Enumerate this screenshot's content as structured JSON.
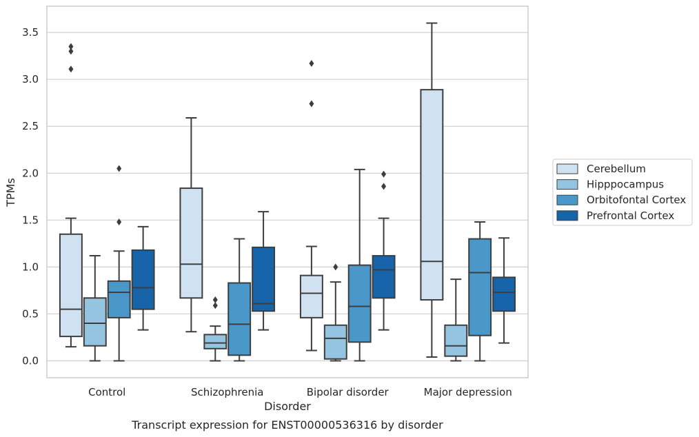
{
  "chart_data": {
    "type": "box",
    "xlabel": "Disorder",
    "ylabel": "TPMs",
    "caption": "Transcript expression for ENST00000536316 by disorder",
    "ylim": [
      -0.18,
      3.78
    ],
    "yticks": [
      0.0,
      0.5,
      1.0,
      1.5,
      2.0,
      2.5,
      3.0,
      3.5
    ],
    "ytick_labels": [
      "0.0",
      "0.5",
      "1.0",
      "1.5",
      "2.0",
      "2.5",
      "3.0",
      "3.5"
    ],
    "categories": [
      "Control",
      "Schizophrenia",
      "Bipolar disorder",
      "Major depression"
    ],
    "grid": true,
    "legend_position": "right",
    "series": [
      {
        "name": "Cerebellum",
        "color": "#d0e1f2",
        "boxes": [
          {
            "whislo": 0.15,
            "q1": 0.26,
            "med": 0.55,
            "q3": 1.35,
            "whishi": 1.52,
            "fliers": [
              3.11,
              3.3,
              3.35
            ]
          },
          {
            "whislo": 0.31,
            "q1": 0.67,
            "med": 1.03,
            "q3": 1.84,
            "whishi": 2.59,
            "fliers": []
          },
          {
            "whislo": 0.11,
            "q1": 0.46,
            "med": 0.72,
            "q3": 0.91,
            "whishi": 1.22,
            "fliers": [
              2.74,
              3.17
            ]
          },
          {
            "whislo": 0.04,
            "q1": 0.65,
            "med": 1.06,
            "q3": 2.89,
            "whishi": 3.6,
            "fliers": []
          }
        ]
      },
      {
        "name": "Hipppocampus",
        "color": "#94c4df",
        "boxes": [
          {
            "whislo": 0.0,
            "q1": 0.16,
            "med": 0.4,
            "q3": 0.67,
            "whishi": 1.12,
            "fliers": []
          },
          {
            "whislo": 0.0,
            "q1": 0.13,
            "med": 0.19,
            "q3": 0.28,
            "whishi": 0.37,
            "fliers": [
              0.59,
              0.65
            ]
          },
          {
            "whislo": 0.0,
            "q1": 0.02,
            "med": 0.24,
            "q3": 0.38,
            "whishi": 0.84,
            "fliers": [
              1.0
            ]
          },
          {
            "whislo": 0.0,
            "q1": 0.05,
            "med": 0.16,
            "q3": 0.38,
            "whishi": 0.87,
            "fliers": []
          }
        ]
      },
      {
        "name": "Orbitofontal Cortex",
        "color": "#4a98c9",
        "boxes": [
          {
            "whislo": 0.0,
            "q1": 0.46,
            "med": 0.73,
            "q3": 0.85,
            "whishi": 1.17,
            "fliers": [
              1.48,
              2.05
            ]
          },
          {
            "whislo": 0.0,
            "q1": 0.06,
            "med": 0.39,
            "q3": 0.83,
            "whishi": 1.3,
            "fliers": []
          },
          {
            "whislo": 0.0,
            "q1": 0.2,
            "med": 0.58,
            "q3": 1.02,
            "whishi": 2.04,
            "fliers": []
          },
          {
            "whislo": 0.0,
            "q1": 0.27,
            "med": 0.94,
            "q3": 1.3,
            "whishi": 1.48,
            "fliers": []
          }
        ]
      },
      {
        "name": "Prefrontal Cortex",
        "color": "#1764ab",
        "boxes": [
          {
            "whislo": 0.33,
            "q1": 0.55,
            "med": 0.78,
            "q3": 1.18,
            "whishi": 1.43,
            "fliers": []
          },
          {
            "whislo": 0.33,
            "q1": 0.53,
            "med": 0.61,
            "q3": 1.21,
            "whishi": 1.59,
            "fliers": []
          },
          {
            "whislo": 0.33,
            "q1": 0.67,
            "med": 0.97,
            "q3": 1.12,
            "whishi": 1.52,
            "fliers": [
              1.86,
              1.99
            ]
          },
          {
            "whislo": 0.19,
            "q1": 0.53,
            "med": 0.73,
            "q3": 0.89,
            "whishi": 1.31,
            "fliers": []
          }
        ]
      }
    ]
  }
}
